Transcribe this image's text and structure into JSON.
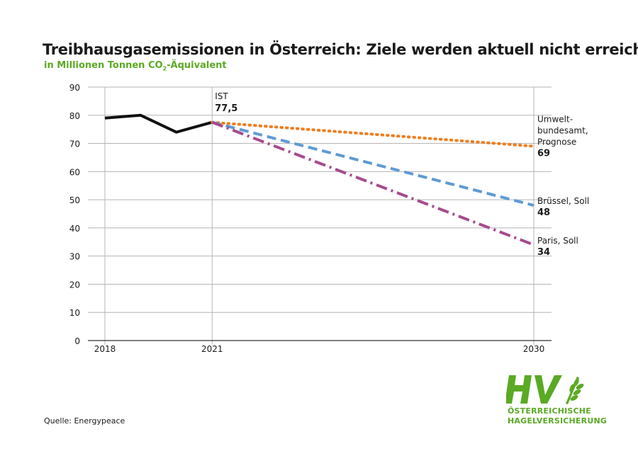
{
  "title": "Treibhausgasemissionen in Österreich: Ziele werden aktuell nicht erreicht",
  "subtitle_prefix": "in Millionen Tonnen CO",
  "subtitle_sub": "2",
  "subtitle_suffix": "-Äquivalent",
  "source": "Quelle: Energypeace",
  "logo": {
    "mark": "HV",
    "line1": "ÖSTERREICHISCHE",
    "line2": "HAGELVERSICHERUNG",
    "color": "#5aaa24"
  },
  "chart_data": {
    "type": "line",
    "ylim": [
      0,
      90
    ],
    "yticks": [
      0,
      10,
      20,
      30,
      40,
      50,
      60,
      70,
      80,
      90
    ],
    "xlim": [
      2018,
      2030
    ],
    "xticks": [
      2018,
      2021,
      2030
    ],
    "grid": true,
    "series": [
      {
        "key": "ist",
        "color": "#111111",
        "style": "solid",
        "points": [
          [
            2018,
            79
          ],
          [
            2019,
            80
          ],
          [
            2020,
            74
          ],
          [
            2021,
            77.5
          ]
        ]
      },
      {
        "key": "prognose",
        "color": "#f07d1e",
        "style": "dotted",
        "points": [
          [
            2021,
            77.5
          ],
          [
            2030,
            69
          ]
        ]
      },
      {
        "key": "bruessel",
        "color": "#5e9bd4",
        "style": "dashed",
        "points": [
          [
            2021,
            77.5
          ],
          [
            2030,
            48
          ]
        ]
      },
      {
        "key": "paris",
        "color": "#a64b8e",
        "style": "dashdot",
        "points": [
          [
            2021,
            77.5
          ],
          [
            2030,
            34
          ]
        ]
      }
    ],
    "annotations": [
      {
        "key": "ist",
        "label": "IST",
        "value": "77,5"
      },
      {
        "key": "prognose",
        "label_lines": [
          "Umwelt-",
          "bundesamt,",
          "Prognose"
        ],
        "value": "69"
      },
      {
        "key": "bruessel",
        "label_lines": [
          "Brüssel, Soll"
        ],
        "value": "48"
      },
      {
        "key": "paris",
        "label_lines": [
          "Paris, Soll"
        ],
        "value": "34"
      }
    ]
  }
}
